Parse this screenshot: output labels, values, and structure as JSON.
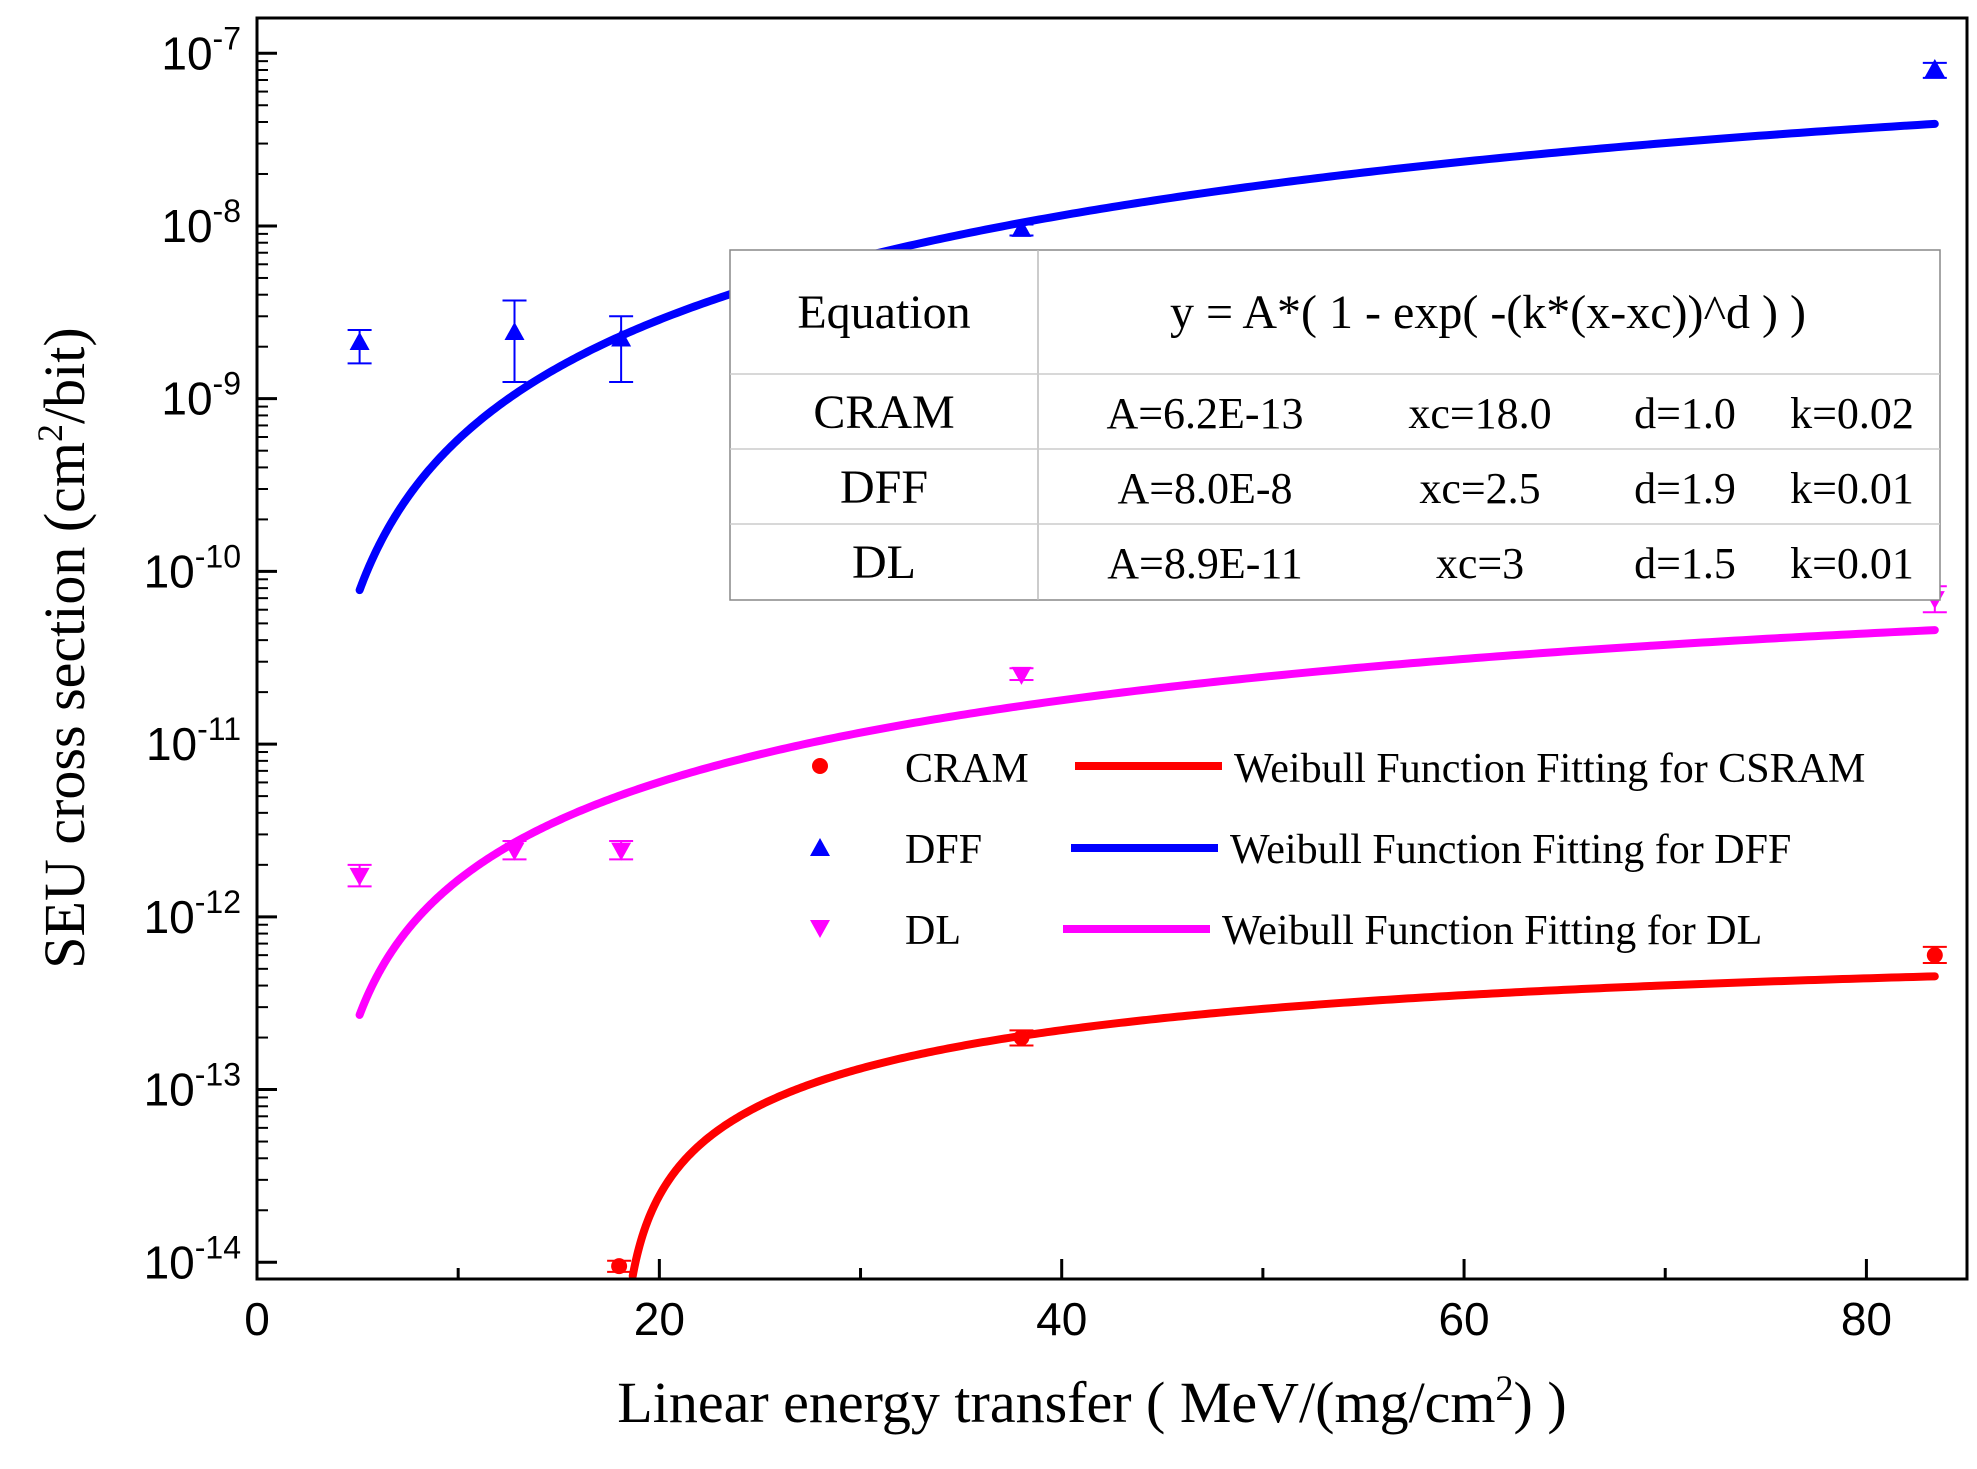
{
  "chart_data": {
    "type": "scatter",
    "title": "",
    "xlabel": "Linear energy transfer ( MeV/(mg/cm2) )",
    "ylabel": "SEU cross section (cm2/bit)",
    "xlabel_parts": {
      "main": "Linear energy transfer ( MeV/(mg/cm",
      "sup": "2",
      "tail": ") )"
    },
    "ylabel_parts": {
      "main": "SEU cross section (cm",
      "sup": "2",
      "tail": "/bit)"
    },
    "xlim": [
      0,
      85
    ],
    "ylim": [
      8e-15,
      1.6e-07
    ],
    "yscale": "log",
    "x_ticks": [
      0,
      20,
      40,
      60,
      80
    ],
    "x_tick_labels": [
      "0",
      "20",
      "40",
      "60",
      "80"
    ],
    "y_ticks": [
      -14,
      -13,
      -12,
      -11,
      -10,
      -9,
      -8,
      -7
    ],
    "y_tick_labels": [
      {
        "base": "10",
        "exp": "-14"
      },
      {
        "base": "10",
        "exp": "-13"
      },
      {
        "base": "10",
        "exp": "-12"
      },
      {
        "base": "10",
        "exp": "-11"
      },
      {
        "base": "10",
        "exp": "-10"
      },
      {
        "base": "10",
        "exp": "-9"
      },
      {
        "base": "10",
        "exp": "-8"
      },
      {
        "base": "10",
        "exp": "-7"
      }
    ],
    "series": [
      {
        "name": "CRAM",
        "marker": "circle",
        "color": "#ff0000",
        "points": [
          {
            "x": 18.0,
            "y": 9.5e-15,
            "ylo": 8.8e-15,
            "yhi": 1.02e-14
          },
          {
            "x": 38.0,
            "y": 2e-13,
            "ylo": 1.8e-13,
            "yhi": 2.2e-13
          },
          {
            "x": 83.4,
            "y": 6e-13,
            "ylo": 5.4e-13,
            "yhi": 6.7e-13
          }
        ],
        "fit": {
          "label": "Weibull Function Fitting for CSRAM",
          "A": 6.2e-13,
          "xc": 18.0,
          "d": 1.0,
          "k": 0.02,
          "x_end": 83.4
        }
      },
      {
        "name": "DFF",
        "marker": "triangle-up",
        "color": "#0000ff",
        "points": [
          {
            "x": 5.1,
            "y": 2.1e-09,
            "ylo": 1.6e-09,
            "yhi": 2.5e-09
          },
          {
            "x": 12.8,
            "y": 2.4e-09,
            "ylo": 1.25e-09,
            "yhi": 3.7e-09
          },
          {
            "x": 18.1,
            "y": 2.2e-09,
            "ylo": 1.25e-09,
            "yhi": 3e-09
          },
          {
            "x": 38.0,
            "y": 9.5e-09,
            "ylo": 8.8e-09,
            "yhi": 1.02e-08
          },
          {
            "x": 83.4,
            "y": 8e-08,
            "ylo": 7.2e-08,
            "yhi": 8.8e-08
          }
        ],
        "fit": {
          "label": "Weibull Function Fitting for DFF",
          "A": 8e-08,
          "xc": 2.5,
          "d": 1.9,
          "k": 0.01,
          "x_start": 5.1,
          "x_end": 83.4
        }
      },
      {
        "name": "DL",
        "marker": "triangle-down",
        "color": "#ff00ff",
        "points": [
          {
            "x": 5.1,
            "y": 1.75e-12,
            "ylo": 1.5e-12,
            "yhi": 2e-12
          },
          {
            "x": 12.8,
            "y": 2.45e-12,
            "ylo": 2.15e-12,
            "yhi": 2.75e-12
          },
          {
            "x": 18.1,
            "y": 2.45e-12,
            "ylo": 2.15e-12,
            "yhi": 2.75e-12
          },
          {
            "x": 38.0,
            "y": 2.55e-11,
            "ylo": 2.35e-11,
            "yhi": 2.75e-11
          },
          {
            "x": 83.4,
            "y": 7e-11,
            "ylo": 5.8e-11,
            "yhi": 8.2e-11
          }
        ],
        "fit": {
          "label": "Weibull Function Fitting for DL",
          "A": 8.9e-11,
          "xc": 3,
          "d": 1.5,
          "k": 0.01,
          "x_start": 5.1,
          "x_end": 83.4
        }
      }
    ],
    "legend": {
      "placement": "lower-right",
      "entries": [
        {
          "marker_label": "CRAM",
          "fit_label": "Weibull Function Fitting for CSRAM",
          "color": "#ff0000",
          "marker": "circle"
        },
        {
          "marker_label": "DFF",
          "fit_label": "Weibull Function Fitting for DFF",
          "color": "#0000ff",
          "marker": "triangle-up"
        },
        {
          "marker_label": "DL",
          "fit_label": "Weibull Function Fitting for DL",
          "color": "#ff00ff",
          "marker": "triangle-down"
        }
      ]
    },
    "equation_table": {
      "placement": "upper-right",
      "header": [
        "Equation",
        "y = A*( 1 - exp( -(k*(x-xc))^d ) )"
      ],
      "rows": [
        {
          "name": "CRAM",
          "A": "A=6.2E-13",
          "xc": "xc=18.0",
          "d": "d=1.0",
          "k": "k=0.02"
        },
        {
          "name": "DFF",
          "A": "A=8.0E-8",
          "xc": "xc=2.5",
          "d": "d=1.9",
          "k": "k=0.01"
        },
        {
          "name": "DL",
          "A": "A=8.9E-11",
          "xc": "xc=3",
          "d": "d=1.5",
          "k": "k=0.01"
        }
      ]
    }
  }
}
